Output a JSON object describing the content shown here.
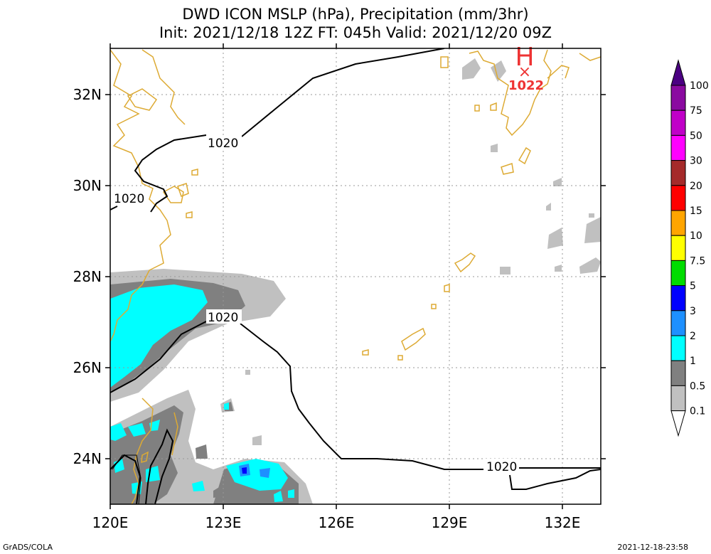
{
  "title": {
    "line1": "DWD ICON MSLP (hPa), Precipitation (mm/3hr)",
    "line2": "Init: 2021/12/18 12Z  FT: 045h  Valid: 2021/12/20 09Z"
  },
  "axes": {
    "lat_ticks": [
      "32N",
      "30N",
      "28N",
      "26N",
      "24N"
    ],
    "lon_ticks": [
      "120E",
      "123E",
      "126E",
      "129E",
      "132E"
    ]
  },
  "contour_labels": [
    "1020",
    "1020",
    "1020",
    "1020"
  ],
  "high_pressure": {
    "symbol": "H",
    "marker": "×",
    "value": "1022",
    "color": "#ee3333"
  },
  "colorbar": {
    "labels": [
      "100",
      "75",
      "50",
      "30",
      "20",
      "15",
      "10",
      "7.5",
      "5",
      "3",
      "2",
      "1",
      "0.5",
      "0.1"
    ],
    "colors": [
      "#4b0082",
      "#8a0aa0",
      "#c000c8",
      "#ff00ff",
      "#a52a2a",
      "#ff0000",
      "#ffa500",
      "#ffff00",
      "#00dd00",
      "#0000ff",
      "#1e90ff",
      "#00ffff",
      "#808080",
      "#c0c0c0",
      "#ffffff"
    ]
  },
  "colors": {
    "coastline": "#ddaa33",
    "isobar": "#000000",
    "precip_light": "#c0c0c0",
    "precip_mid": "#808080",
    "precip_cyan": "#00ffff",
    "precip_2": "#1e90ff",
    "precip_3": "#0000ff"
  },
  "footer": {
    "left": "GrADS/COLA",
    "right": "2021-12-18-23:58"
  }
}
